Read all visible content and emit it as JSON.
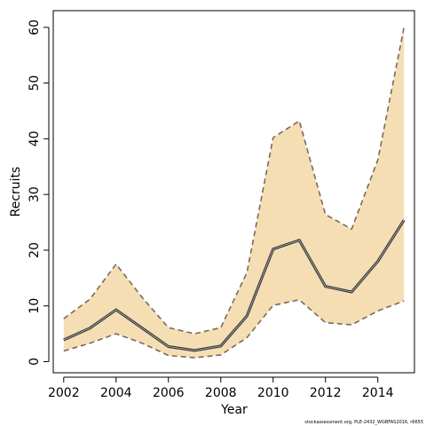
{
  "chart_data": {
    "type": "area",
    "title": "",
    "xlabel": "Year",
    "ylabel": "Recruits",
    "xlim": [
      2001.6,
      2015.4
    ],
    "ylim": [
      -2,
      63
    ],
    "x_ticks": [
      "2002",
      "2004",
      "2006",
      "2008",
      "2010",
      "2012",
      "2014"
    ],
    "y_ticks": [
      "0",
      "10",
      "20",
      "30",
      "40",
      "50",
      "60"
    ],
    "grid": false,
    "legend": "none",
    "x": [
      2002,
      2003,
      2004,
      2005,
      2006,
      2007,
      2008,
      2009,
      2010,
      2011,
      2012,
      2013,
      2014,
      2015
    ],
    "series": [
      {
        "role": "estimate",
        "values": [
          3.9,
          6.0,
          9.3,
          6.0,
          2.7,
          2.0,
          2.8,
          8.2,
          20.2,
          21.8,
          13.5,
          12.5,
          18.0,
          25.4
        ]
      },
      {
        "role": "upper",
        "values": [
          7.7,
          11.2,
          17.5,
          11.5,
          6.1,
          5.0,
          6.1,
          16.0,
          40.2,
          43.2,
          26.4,
          23.8,
          36.2,
          60.0
        ]
      },
      {
        "role": "lower",
        "values": [
          1.9,
          3.3,
          5.0,
          3.3,
          1.1,
          0.7,
          1.2,
          4.3,
          10.1,
          11.1,
          7.0,
          6.6,
          9.1,
          10.9
        ]
      }
    ],
    "colors": {
      "band": "#f5deb3",
      "bound_line": "#7a6a5a",
      "estimate_line": "#333333",
      "axis": "#000000"
    },
    "credit": "stockassessment.org, PLE-2432_WGBFAS2016, r6655"
  }
}
